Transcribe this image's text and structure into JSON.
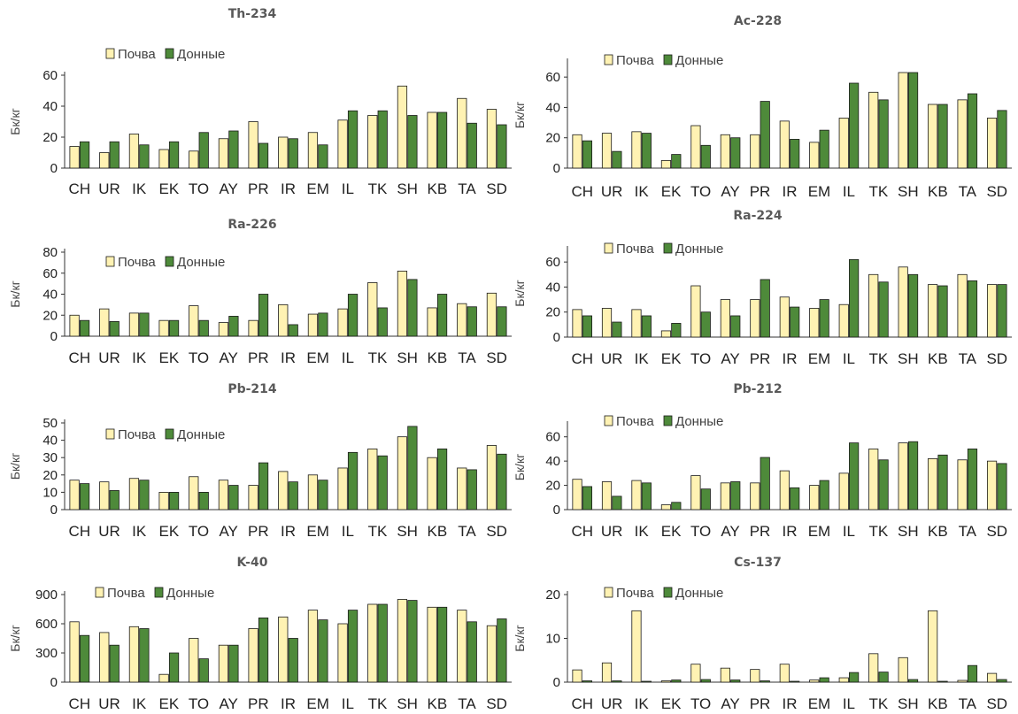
{
  "colors": {
    "soil": "#FFF2B3",
    "sediment": "#4E8A3A",
    "outline": "#1a1a1a"
  },
  "chart_data": [
    {
      "type": "bar",
      "title": "Th-234",
      "ylabel": "Бк/кг",
      "ylim": [
        0,
        60
      ],
      "yticks": [
        0,
        20,
        40,
        60
      ],
      "categories": [
        "CH",
        "UR",
        "IK",
        "EK",
        "TO",
        "AY",
        "PR",
        "IR",
        "EM",
        "IL",
        "TK",
        "SH",
        "KB",
        "TA",
        "SD"
      ],
      "series": [
        {
          "name": "Почва",
          "values": [
            14,
            10,
            22,
            12,
            11,
            19,
            30,
            20,
            23,
            31,
            34,
            53,
            36,
            45,
            38
          ]
        },
        {
          "name": "Донные",
          "values": [
            17,
            17,
            15,
            17,
            23,
            24,
            16,
            19,
            15,
            37,
            37,
            34,
            36,
            29,
            28
          ]
        }
      ]
    },
    {
      "type": "bar",
      "title": "Ac-228",
      "ylabel": "Бк/кг",
      "ylim": [
        0,
        70
      ],
      "yticks": [
        0,
        20,
        40,
        60
      ],
      "categories": [
        "CH",
        "UR",
        "IK",
        "EK",
        "TO",
        "AY",
        "PR",
        "IR",
        "EM",
        "IL",
        "TK",
        "SH",
        "KB",
        "TA",
        "SD"
      ],
      "series": [
        {
          "name": "Почва",
          "values": [
            22,
            23,
            24,
            5,
            28,
            22,
            22,
            31,
            17,
            33,
            50,
            63,
            42,
            45,
            33
          ]
        },
        {
          "name": "Донные",
          "values": [
            18,
            11,
            23,
            9,
            15,
            20,
            44,
            19,
            25,
            56,
            45,
            63,
            42,
            49,
            38
          ]
        }
      ]
    },
    {
      "type": "bar",
      "title": "Ra-226",
      "ylabel": "Бк/кг",
      "ylim": [
        0,
        80
      ],
      "yticks": [
        0,
        20,
        40,
        60,
        80
      ],
      "categories": [
        "CH",
        "UR",
        "IK",
        "EK",
        "TO",
        "AY",
        "PR",
        "IR",
        "EM",
        "IL",
        "TK",
        "SH",
        "KB",
        "TA",
        "SD"
      ],
      "series": [
        {
          "name": "Почва",
          "values": [
            20,
            26,
            22,
            15,
            29,
            13,
            15,
            30,
            21,
            26,
            51,
            62,
            27,
            31,
            41
          ]
        },
        {
          "name": "Донные",
          "values": [
            15,
            14,
            22,
            15,
            15,
            19,
            40,
            11,
            22,
            40,
            27,
            54,
            40,
            28,
            28
          ]
        }
      ]
    },
    {
      "type": "bar",
      "title": "Ra-224",
      "ylabel": "Бк/кг",
      "ylim": [
        0,
        70
      ],
      "yticks": [
        0,
        20,
        40,
        60
      ],
      "categories": [
        "CH",
        "UR",
        "IK",
        "EK",
        "TO",
        "AY",
        "PR",
        "IR",
        "EM",
        "IL",
        "TK",
        "SH",
        "KB",
        "TA",
        "SD"
      ],
      "series": [
        {
          "name": "Почва",
          "values": [
            22,
            23,
            22,
            5,
            41,
            30,
            30,
            32,
            23,
            26,
            50,
            56,
            42,
            50,
            42
          ]
        },
        {
          "name": "Донные",
          "values": [
            17,
            12,
            17,
            11,
            20,
            17,
            46,
            24,
            30,
            62,
            44,
            50,
            41,
            45,
            42
          ]
        }
      ]
    },
    {
      "type": "bar",
      "title": "Pb-214",
      "ylabel": "Бк/кг",
      "ylim": [
        0,
        50
      ],
      "yticks": [
        0,
        10,
        20,
        30,
        40,
        50
      ],
      "categories": [
        "CH",
        "UR",
        "IK",
        "EK",
        "TO",
        "AY",
        "PR",
        "IR",
        "EM",
        "IL",
        "TK",
        "SH",
        "KB",
        "TA",
        "SD"
      ],
      "series": [
        {
          "name": "Почва",
          "values": [
            17,
            16,
            18,
            10,
            19,
            17,
            14,
            22,
            20,
            24,
            35,
            42,
            30,
            24,
            37
          ]
        },
        {
          "name": "Донные",
          "values": [
            15,
            11,
            17,
            10,
            10,
            14,
            27,
            16,
            17,
            33,
            31,
            48,
            35,
            23,
            32
          ]
        }
      ]
    },
    {
      "type": "bar",
      "title": "Pb-212",
      "ylabel": "Бк/кг",
      "ylim": [
        0,
        70
      ],
      "yticks": [
        0,
        20,
        40,
        60
      ],
      "categories": [
        "CH",
        "UR",
        "IK",
        "EK",
        "TO",
        "AY",
        "PR",
        "IR",
        "EM",
        "IL",
        "TK",
        "SH",
        "KB",
        "TA",
        "SD"
      ],
      "series": [
        {
          "name": "Почва",
          "values": [
            25,
            23,
            24,
            4,
            28,
            22,
            22,
            32,
            20,
            30,
            50,
            55,
            42,
            41,
            40
          ]
        },
        {
          "name": "Донные",
          "values": [
            19,
            11,
            22,
            6,
            17,
            23,
            43,
            18,
            24,
            55,
            41,
            56,
            45,
            50,
            38
          ]
        }
      ]
    },
    {
      "type": "bar",
      "title": "K-40",
      "ylabel": "Бк/кг",
      "ylim": [
        0,
        900
      ],
      "yticks": [
        0,
        300,
        600,
        900
      ],
      "categories": [
        "CH",
        "UR",
        "IK",
        "EK",
        "TO",
        "AY",
        "PR",
        "IR",
        "EM",
        "IL",
        "TK",
        "SH",
        "KB",
        "TA",
        "SD"
      ],
      "series": [
        {
          "name": "Почва",
          "values": [
            620,
            510,
            570,
            80,
            450,
            380,
            550,
            670,
            740,
            600,
            800,
            850,
            770,
            740,
            580
          ]
        },
        {
          "name": "Донные",
          "values": [
            480,
            380,
            550,
            300,
            240,
            380,
            660,
            450,
            640,
            740,
            800,
            840,
            770,
            620,
            650
          ]
        }
      ]
    },
    {
      "type": "bar",
      "title": "Cs-137",
      "ylabel": "Бк/кг",
      "ylim": [
        0,
        20
      ],
      "yticks": [
        0,
        10,
        20
      ],
      "categories": [
        "CH",
        "UR",
        "IK",
        "EK",
        "TO",
        "AY",
        "PR",
        "IR",
        "EM",
        "IL",
        "TK",
        "SH",
        "KB",
        "TA",
        "SD"
      ],
      "series": [
        {
          "name": "Почва",
          "values": [
            2.8,
            4.4,
            16.3,
            0.3,
            4.1,
            3.2,
            2.9,
            4.1,
            0.5,
            1.0,
            6.5,
            5.6,
            16.3,
            0.4,
            2.0
          ]
        },
        {
          "name": "Донные",
          "values": [
            0.3,
            0.3,
            0.2,
            0.5,
            0.6,
            0.5,
            0.3,
            0.2,
            1.0,
            2.2,
            2.3,
            0.6,
            0.2,
            3.8,
            0.6
          ]
        }
      ]
    }
  ]
}
